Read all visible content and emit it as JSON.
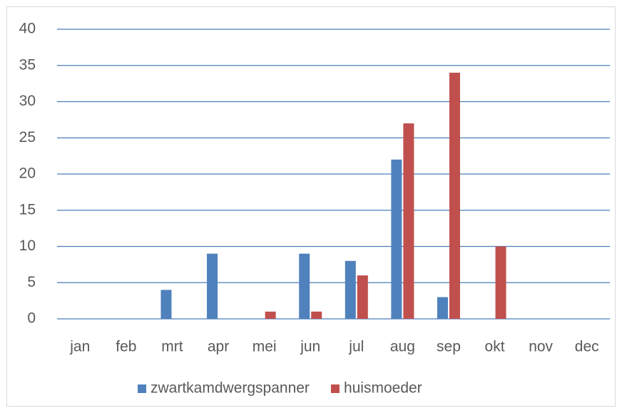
{
  "chart_data": {
    "type": "bar",
    "categories": [
      "jan",
      "feb",
      "mrt",
      "apr",
      "mei",
      "jun",
      "jul",
      "aug",
      "sep",
      "okt",
      "nov",
      "dec"
    ],
    "series": [
      {
        "name": "zwartkamdwergspanner",
        "color": "#4f81bd",
        "values": [
          0,
          0,
          4,
          9,
          0,
          9,
          8,
          22,
          3,
          0,
          0,
          0
        ]
      },
      {
        "name": "huismoeder",
        "color": "#c0504d",
        "values": [
          0,
          0,
          0,
          0,
          1,
          1,
          6,
          27,
          34,
          10,
          0,
          0
        ]
      }
    ],
    "ylim": [
      0,
      40
    ],
    "yticks": [
      0,
      5,
      10,
      15,
      20,
      25,
      30,
      35,
      40
    ],
    "grid": true,
    "grid_color": "#4a7ebb",
    "legend": "bottom"
  }
}
